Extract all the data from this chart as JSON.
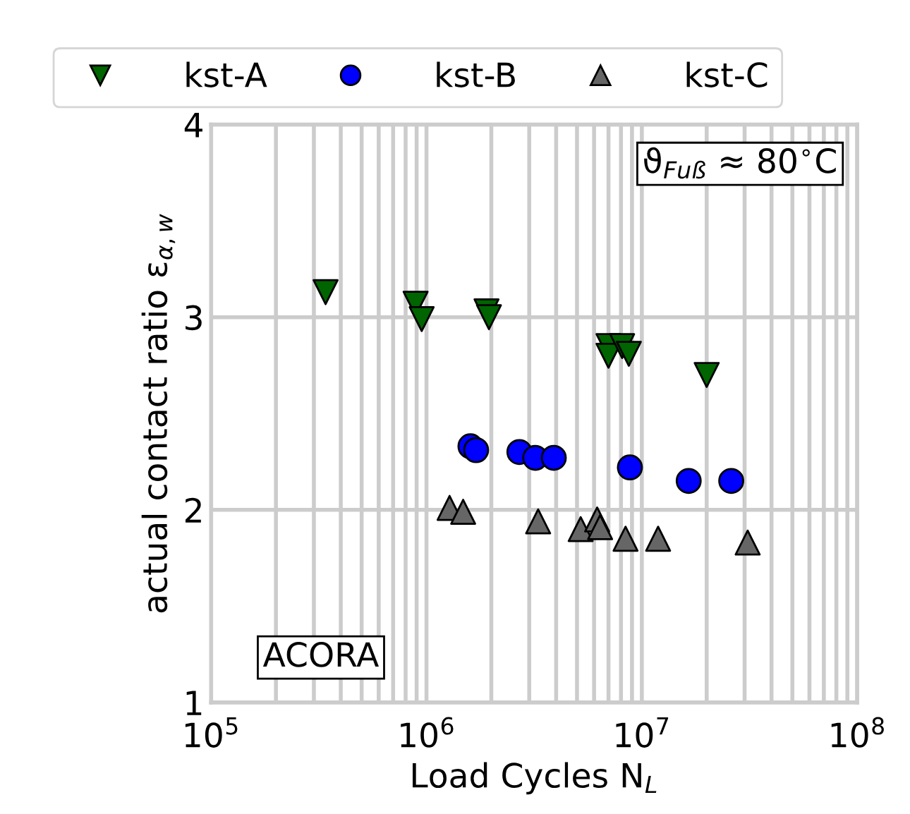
{
  "chart_data": {
    "type": "scatter",
    "xlabel": "Load Cycles N$_{L}$",
    "ylabel": "actual contact ratio ε$_{α,w}$",
    "log": "x",
    "grid": true,
    "legend": "top",
    "xlim": [
      100000,
      100000000
    ],
    "ylim": [
      1,
      4
    ],
    "xticks": [
      {
        "value": 100000,
        "label": "10$^{5}$"
      },
      {
        "value": 1000000,
        "label": "10$^{6}$"
      },
      {
        "value": 10000000,
        "label": "10$^{7}$"
      },
      {
        "value": 100000000,
        "label": "10$^{8}$"
      }
    ],
    "yticks": [
      1,
      2,
      3,
      4
    ],
    "annotations": [
      "ϑ$_{Fuß}$ ≈ 80$^{∘}$C",
      "ACORA"
    ],
    "series": [
      {
        "name": "kst-A",
        "color": "#006400",
        "marker": "triangle_down",
        "x": [
          340000,
          890000,
          950000,
          1900000,
          1950000,
          7000000,
          7000000,
          8100000,
          8700000,
          20000000
        ],
        "values": [
          3.13,
          3.07,
          2.99,
          3.03,
          3.0,
          2.85,
          2.8,
          2.85,
          2.81,
          2.7
        ]
      },
      {
        "name": "kst-B",
        "color": "#0000ff",
        "marker": "circle",
        "x": [
          1600000,
          1700000,
          2700000,
          3200000,
          3900000,
          8800000,
          16500000,
          26000000
        ],
        "values": [
          2.33,
          2.31,
          2.3,
          2.27,
          2.27,
          2.22,
          2.15,
          2.15
        ]
      },
      {
        "name": "kst-C",
        "color": "#666666",
        "marker": "triangle",
        "x": [
          1280000,
          1480000,
          3300000,
          5200000,
          6200000,
          6400000,
          8400000,
          11900000,
          31000000
        ],
        "values": [
          2.01,
          1.99,
          1.94,
          1.9,
          1.95,
          1.91,
          1.85,
          1.85,
          1.83
        ]
      }
    ]
  }
}
